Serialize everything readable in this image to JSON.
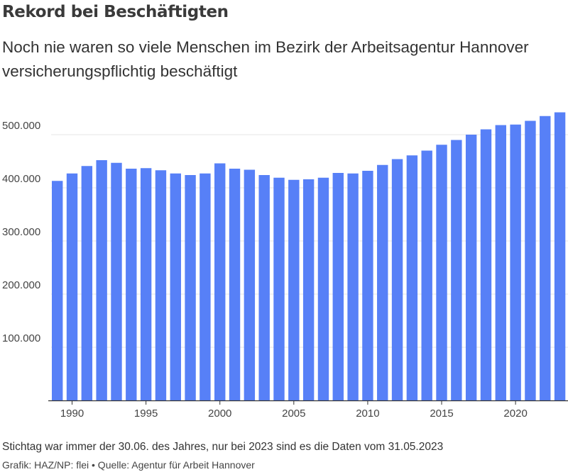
{
  "title": "Rekord bei Beschäftigten",
  "subtitle": "Noch nie waren so viele Menschen im Bezirk der Arbeitsagentur Hannover versicherungspflichtig beschäftigt",
  "note": "Stichtag war immer der 30.06. des Jahres, nur bei 2023 sind es die Daten vom 31.05.2023",
  "credit": "Grafik: HAZ/NP: flei • Quelle: Agentur für Arbeit Hannover",
  "colors": {
    "bar": "#5780f7",
    "grid": "#e6e6e6",
    "axis": "#333333"
  },
  "chart_data": {
    "type": "bar",
    "categories": [
      1989,
      1990,
      1991,
      1992,
      1993,
      1994,
      1995,
      1996,
      1997,
      1998,
      1999,
      2000,
      2001,
      2002,
      2003,
      2004,
      2005,
      2006,
      2007,
      2008,
      2009,
      2010,
      2011,
      2012,
      2013,
      2014,
      2015,
      2016,
      2017,
      2018,
      2019,
      2020,
      2021,
      2022,
      2023
    ],
    "values": [
      413000,
      427000,
      441000,
      452000,
      447000,
      436000,
      437000,
      433000,
      427000,
      424000,
      427000,
      446000,
      436000,
      434000,
      424000,
      419000,
      415000,
      416000,
      419000,
      428000,
      427000,
      432000,
      443000,
      454000,
      461000,
      470000,
      481000,
      490000,
      500000,
      510000,
      518000,
      519000,
      526000,
      535000,
      542000
    ],
    "ylim": [
      0,
      560000
    ],
    "yticks": [
      100000,
      200000,
      300000,
      400000,
      500000
    ],
    "ytick_labels": [
      "100.000",
      "200.000",
      "300.000",
      "400.000",
      "500.000"
    ],
    "xticks": [
      1990,
      1995,
      2000,
      2005,
      2010,
      2015,
      2020
    ],
    "xtick_labels": [
      "1990",
      "1995",
      "2000",
      "2005",
      "2010",
      "2015",
      "2020"
    ],
    "grid": true
  }
}
